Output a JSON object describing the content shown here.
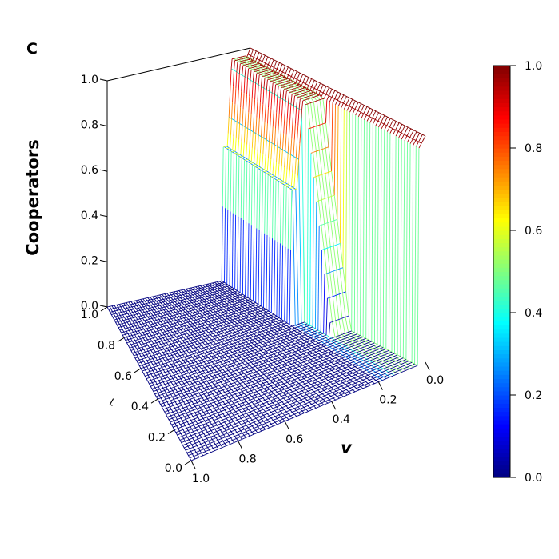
{
  "panel_label": "C",
  "chart_data": {
    "type": "surface3d",
    "zlabel": "Cooperators",
    "xlabel": "v",
    "ylabel": "r",
    "zlim": [
      0,
      1
    ],
    "xlim": [
      0,
      1
    ],
    "ylim": [
      0,
      1
    ],
    "z_ticks": [
      "0.0",
      "0.2",
      "0.4",
      "0.6",
      "0.8",
      "1.0"
    ],
    "v_ticks": [
      "0.0",
      "0.2",
      "0.4",
      "0.6",
      "0.8",
      "1.0"
    ],
    "r_ticks": [
      "0.0",
      "0.2",
      "0.4",
      "0.6",
      "0.8",
      "1.0"
    ],
    "surface_regions": [
      {
        "v_range": [
          0.0,
          0.0
        ],
        "r_range": [
          0,
          1
        ],
        "z": 1.0
      },
      {
        "v_range": [
          0.0,
          0.15
        ],
        "r_range": [
          0,
          1
        ],
        "z": [
          1.0,
          0.78
        ]
      },
      {
        "v_range": [
          0.15,
          1.0
        ],
        "r_range": [
          0.0,
          0.43
        ],
        "z": 0.0
      },
      {
        "v_range": [
          0.15,
          1.0
        ],
        "r_range": [
          0.43,
          0.57
        ],
        "z": [
          0.0,
          0.97
        ]
      },
      {
        "v_range": [
          0.15,
          0.2
        ],
        "r_range": [
          0.57,
          1.0
        ],
        "z": 0.59
      },
      {
        "v_range": [
          0.2,
          1.0
        ],
        "r_range": [
          0.57,
          0.62
        ],
        "z": [
          0.0,
          0.59
        ]
      },
      {
        "v_range": [
          0.2,
          1.0
        ],
        "r_range": [
          0.62,
          1.0
        ],
        "z": 0.0
      }
    ],
    "colorbar": {
      "ticks": [
        "0.0",
        "0.2",
        "0.4",
        "0.6",
        "0.8",
        "1.0"
      ],
      "colors": [
        "#00007f",
        "#0000ff",
        "#00ffff",
        "#ffff00",
        "#ff0000",
        "#7f0000"
      ]
    }
  }
}
